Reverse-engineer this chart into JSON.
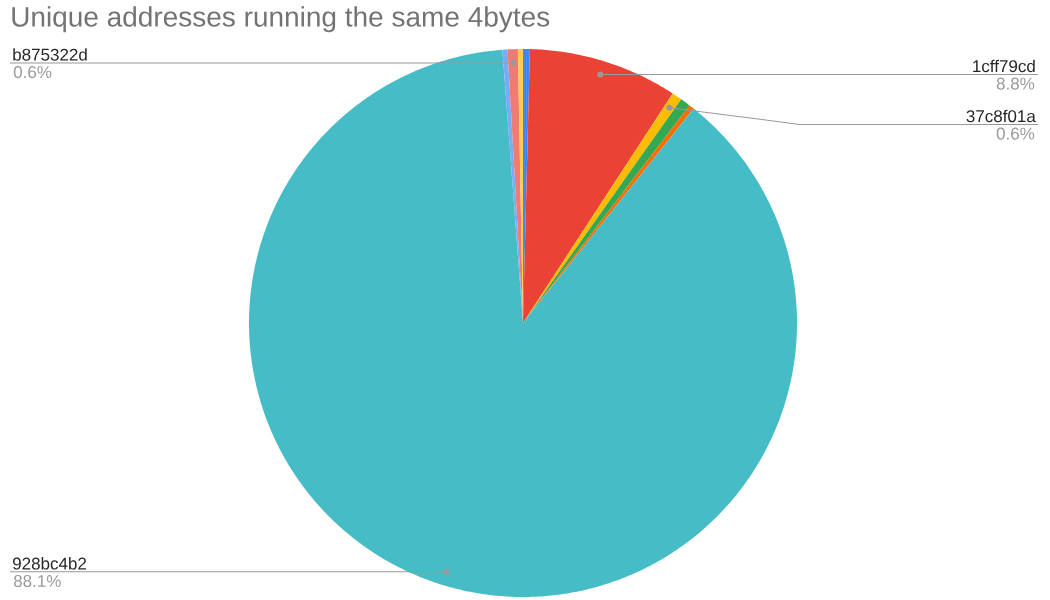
{
  "chart_data": {
    "type": "pie",
    "title": "Unique addresses running the same 4bytes",
    "categories": [
      null,
      "1cff79cd",
      "37c8f01a",
      null,
      null,
      "928bc4b2",
      null,
      "b875322d",
      null
    ],
    "values": [
      0.4,
      8.8,
      0.6,
      0.6,
      0.3,
      88.1,
      0.3,
      0.6,
      0.3
    ],
    "value_labels": [
      null,
      "8.8%",
      "0.6%",
      null,
      null,
      "88.1%",
      null,
      "0.6%",
      null
    ],
    "colors": [
      "#4285f4",
      "#ea4335",
      "#fbbc04",
      "#34a853",
      "#ff6d01",
      "#46bdc6",
      "#7baaf7",
      "#f07b72",
      "#fcd04f"
    ]
  }
}
